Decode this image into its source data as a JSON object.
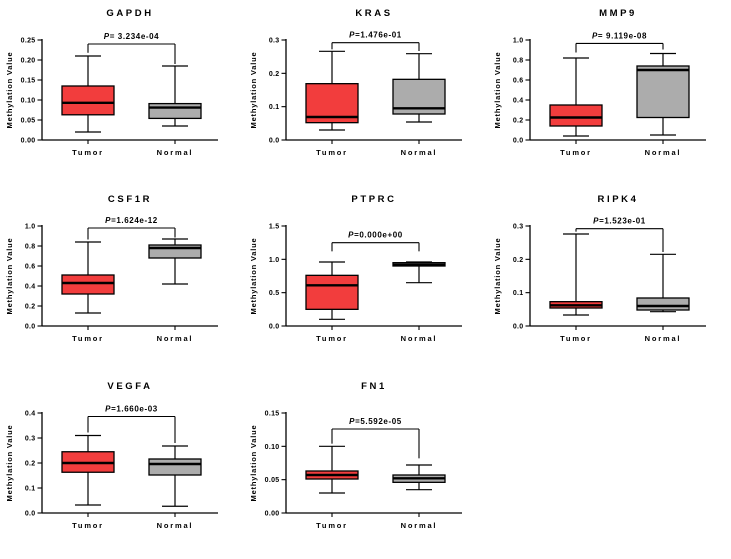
{
  "figure": {
    "y_axis_label": "Methylation Value",
    "categories": [
      "Tumor",
      "Normal"
    ],
    "colors": {
      "tumor_fill": "#F23D3D",
      "normal_fill": "#ACACAC",
      "stroke": "#000000",
      "background": "#FFFFFF"
    },
    "layout": {
      "columns": 3,
      "rows": 3,
      "panel_count": 8,
      "legend": "none",
      "grid": "off"
    }
  },
  "chart_data": [
    {
      "type": "box",
      "title": "GAPDH",
      "p_text": "P= 3.234e-04",
      "ylabel": "Methylation Value",
      "ylim": [
        0,
        0.25
      ],
      "yticks": [
        "0.00",
        "0.05",
        "0.10",
        "0.15",
        "0.20",
        "0.25"
      ],
      "categories": [
        "Tumor",
        "Normal"
      ],
      "series": [
        {
          "name": "Tumor",
          "whisker_low": 0.02,
          "q1": 0.063,
          "median": 0.093,
          "q3": 0.135,
          "whisker_high": 0.21
        },
        {
          "name": "Normal",
          "whisker_low": 0.035,
          "q1": 0.054,
          "median": 0.081,
          "q3": 0.091,
          "whisker_high": 0.185
        }
      ],
      "bracket": {
        "y": 0.24,
        "left_drop_to": 0.218,
        "right_drop_to": 0.19
      }
    },
    {
      "type": "box",
      "title": "KRAS",
      "p_text": "P=1.476e-01",
      "ylabel": "Methylation Value",
      "ylim": [
        0,
        0.3
      ],
      "yticks": [
        "0.0",
        "0.1",
        "0.2",
        "0.3"
      ],
      "categories": [
        "Tumor",
        "Normal"
      ],
      "series": [
        {
          "name": "Tumor",
          "whisker_low": 0.03,
          "q1": 0.052,
          "median": 0.069,
          "q3": 0.169,
          "whisker_high": 0.266
        },
        {
          "name": "Normal",
          "whisker_low": 0.054,
          "q1": 0.078,
          "median": 0.095,
          "q3": 0.182,
          "whisker_high": 0.259
        }
      ],
      "bracket": {
        "y": 0.292,
        "left_drop_to": 0.272,
        "right_drop_to": 0.267
      }
    },
    {
      "type": "box",
      "title": "MMP9",
      "p_text": "P= 9.119e-08",
      "ylabel": "Methylation Value",
      "ylim": [
        0,
        1.0
      ],
      "yticks": [
        "0.0",
        "0.2",
        "0.4",
        "0.6",
        "0.8",
        "1.0"
      ],
      "categories": [
        "Tumor",
        "Normal"
      ],
      "series": [
        {
          "name": "Tumor",
          "whisker_low": 0.04,
          "q1": 0.14,
          "median": 0.225,
          "q3": 0.35,
          "whisker_high": 0.82
        },
        {
          "name": "Normal",
          "whisker_low": 0.05,
          "q1": 0.225,
          "median": 0.7,
          "q3": 0.74,
          "whisker_high": 0.865
        }
      ],
      "bracket": {
        "y": 0.966,
        "left_drop_to": 0.875,
        "right_drop_to": 0.905
      }
    },
    {
      "type": "box",
      "title": "CSF1R",
      "p_text": "P=1.624e-12",
      "ylabel": "Methylation Value",
      "ylim": [
        0,
        1.0
      ],
      "yticks": [
        "0.0",
        "0.2",
        "0.4",
        "0.6",
        "0.8",
        "1.0"
      ],
      "categories": [
        "Tumor",
        "Normal"
      ],
      "series": [
        {
          "name": "Tumor",
          "whisker_low": 0.13,
          "q1": 0.32,
          "median": 0.43,
          "q3": 0.51,
          "whisker_high": 0.84
        },
        {
          "name": "Normal",
          "whisker_low": 0.42,
          "q1": 0.68,
          "median": 0.78,
          "q3": 0.81,
          "whisker_high": 0.87
        }
      ],
      "bracket": {
        "y": 0.98,
        "left_drop_to": 0.865,
        "right_drop_to": 0.885
      }
    },
    {
      "type": "box",
      "title": "PTPRC",
      "p_text": "P=0.000e+00",
      "ylabel": "Methylation Value",
      "ylim": [
        0,
        1.5
      ],
      "yticks": [
        "0.0",
        "0.5",
        "1.0",
        "1.5"
      ],
      "categories": [
        "Tumor",
        "Normal"
      ],
      "series": [
        {
          "name": "Tumor",
          "whisker_low": 0.1,
          "q1": 0.25,
          "median": 0.61,
          "q3": 0.76,
          "whisker_high": 0.96
        },
        {
          "name": "Normal",
          "whisker_low": 0.65,
          "q1": 0.9,
          "median": 0.92,
          "q3": 0.95,
          "whisker_high": 0.96
        }
      ],
      "bracket": {
        "y": 1.25,
        "left_drop_to": 1.12,
        "right_drop_to": 1.12
      }
    },
    {
      "type": "box",
      "title": "RIPK4",
      "p_text": "P=1.523e-01",
      "ylabel": "Methylation Value",
      "ylim": [
        0,
        0.3
      ],
      "yticks": [
        "0.0",
        "0.1",
        "0.2",
        "0.3"
      ],
      "categories": [
        "Tumor",
        "Normal"
      ],
      "series": [
        {
          "name": "Tumor",
          "whisker_low": 0.033,
          "q1": 0.054,
          "median": 0.062,
          "q3": 0.073,
          "whisker_high": 0.276
        },
        {
          "name": "Normal",
          "whisker_low": 0.043,
          "q1": 0.048,
          "median": 0.06,
          "q3": 0.084,
          "whisker_high": 0.215
        }
      ],
      "bracket": {
        "y": 0.292,
        "left_drop_to": 0.283,
        "right_drop_to": 0.222
      }
    },
    {
      "type": "box",
      "title": "VEGFA",
      "p_text": "P=1.660e-03",
      "ylabel": "Methylation Value",
      "ylim": [
        0,
        0.4
      ],
      "yticks": [
        "0.0",
        "0.1",
        "0.2",
        "0.3",
        "0.4"
      ],
      "categories": [
        "Tumor",
        "Normal"
      ],
      "series": [
        {
          "name": "Tumor",
          "whisker_low": 0.032,
          "q1": 0.163,
          "median": 0.2,
          "q3": 0.245,
          "whisker_high": 0.31
        },
        {
          "name": "Normal",
          "whisker_low": 0.027,
          "q1": 0.152,
          "median": 0.196,
          "q3": 0.216,
          "whisker_high": 0.268
        }
      ],
      "bracket": {
        "y": 0.386,
        "left_drop_to": 0.322,
        "right_drop_to": 0.28
      }
    },
    {
      "type": "box",
      "title": "FN1",
      "p_text": "P=5.592e-05",
      "ylabel": "Methylation Value",
      "ylim": [
        0,
        0.15
      ],
      "yticks": [
        "0.00",
        "0.05",
        "0.10",
        "0.15"
      ],
      "categories": [
        "Tumor",
        "Normal"
      ],
      "series": [
        {
          "name": "Tumor",
          "whisker_low": 0.03,
          "q1": 0.051,
          "median": 0.057,
          "q3": 0.063,
          "whisker_high": 0.1
        },
        {
          "name": "Normal",
          "whisker_low": 0.035,
          "q1": 0.046,
          "median": 0.052,
          "q3": 0.057,
          "whisker_high": 0.072
        }
      ],
      "bracket": {
        "y": 0.126,
        "left_drop_to": 0.104,
        "right_drop_to": 0.082
      }
    }
  ]
}
